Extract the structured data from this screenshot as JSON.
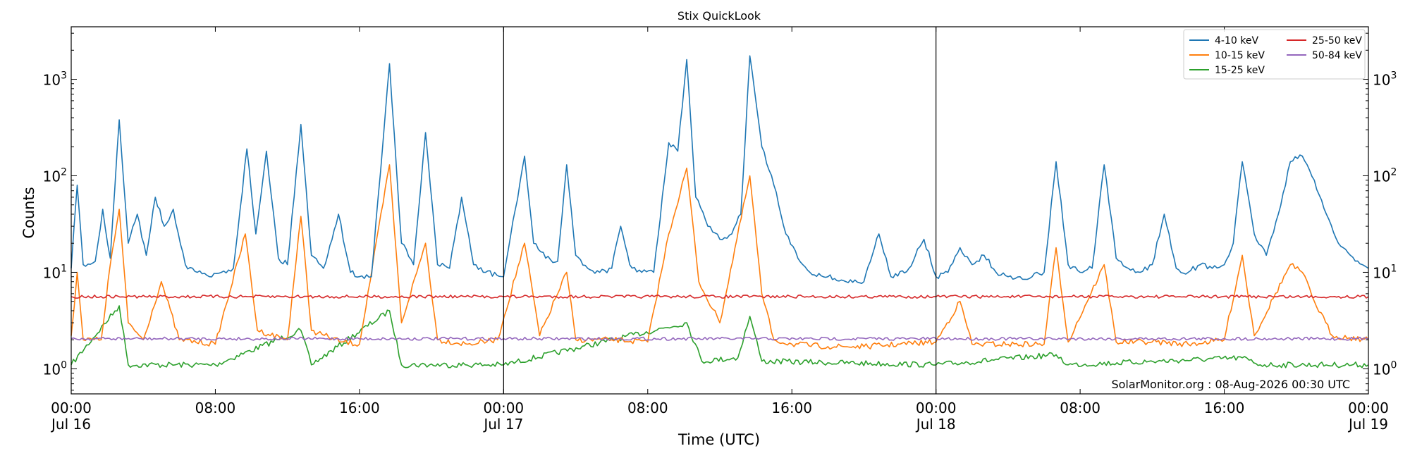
{
  "chart_data": {
    "type": "line",
    "title": "Stix QuickLook",
    "xlabel": "Time (UTC)",
    "ylabel": "Counts",
    "yscale": "log",
    "ylim": [
      0.55,
      3500
    ],
    "xlim": [
      "2026-07-16 00:00",
      "2026-07-19 00:00"
    ],
    "grid": false,
    "legend_position": "top-right",
    "annotation": "SolarMonitor.org : 08-Aug-2026 00:30 UTC",
    "x_ticks": [
      {
        "at": "2026-07-16 00:00",
        "line1": "00:00",
        "line2": "Jul 16"
      },
      {
        "at": "2026-07-16 08:00",
        "line1": "08:00",
        "line2": ""
      },
      {
        "at": "2026-07-16 16:00",
        "line1": "16:00",
        "line2": ""
      },
      {
        "at": "2026-07-17 00:00",
        "line1": "00:00",
        "line2": "Jul 17"
      },
      {
        "at": "2026-07-17 08:00",
        "line1": "08:00",
        "line2": ""
      },
      {
        "at": "2026-07-17 16:00",
        "line1": "16:00",
        "line2": ""
      },
      {
        "at": "2026-07-18 00:00",
        "line1": "00:00",
        "line2": "Jul 18"
      },
      {
        "at": "2026-07-18 08:00",
        "line1": "08:00",
        "line2": ""
      },
      {
        "at": "2026-07-18 16:00",
        "line1": "16:00",
        "line2": ""
      },
      {
        "at": "2026-07-19 00:00",
        "line1": "00:00",
        "line2": "Jul 19"
      }
    ],
    "y_ticks": [
      1,
      10,
      100,
      1000
    ],
    "day_markers": [
      "2026-07-17 00:00",
      "2026-07-18 00:00"
    ],
    "series": [
      {
        "name": "4-10 keV",
        "color": "#1f77b4",
        "points": [
          [
            "2026-07-16 00:00",
            11
          ],
          [
            "2026-07-16 00:20",
            80
          ],
          [
            "2026-07-16 00:40",
            12
          ],
          [
            "2026-07-16 01:20",
            13
          ],
          [
            "2026-07-16 01:45",
            45
          ],
          [
            "2026-07-16 02:10",
            14
          ],
          [
            "2026-07-16 02:40",
            380
          ],
          [
            "2026-07-16 03:10",
            20
          ],
          [
            "2026-07-16 03:40",
            40
          ],
          [
            "2026-07-16 04:10",
            15
          ],
          [
            "2026-07-16 04:40",
            60
          ],
          [
            "2026-07-16 05:10",
            30
          ],
          [
            "2026-07-16 05:40",
            45
          ],
          [
            "2026-07-16 06:20",
            12
          ],
          [
            "2026-07-16 07:00",
            10
          ],
          [
            "2026-07-16 07:40",
            9
          ],
          [
            "2026-07-16 08:20",
            10
          ],
          [
            "2026-07-16 09:00",
            11
          ],
          [
            "2026-07-16 09:45",
            190
          ],
          [
            "2026-07-16 10:15",
            25
          ],
          [
            "2026-07-16 10:50",
            180
          ],
          [
            "2026-07-16 11:30",
            14
          ],
          [
            "2026-07-16 12:00",
            12
          ],
          [
            "2026-07-16 12:45",
            340
          ],
          [
            "2026-07-16 13:20",
            15
          ],
          [
            "2026-07-16 14:00",
            11
          ],
          [
            "2026-07-16 14:50",
            40
          ],
          [
            "2026-07-16 15:30",
            10
          ],
          [
            "2026-07-16 16:00",
            9
          ],
          [
            "2026-07-16 16:40",
            9
          ],
          [
            "2026-07-16 17:40",
            1450
          ],
          [
            "2026-07-16 18:20",
            20
          ],
          [
            "2026-07-16 19:00",
            12
          ],
          [
            "2026-07-16 19:40",
            280
          ],
          [
            "2026-07-16 20:20",
            12
          ],
          [
            "2026-07-16 21:00",
            11
          ],
          [
            "2026-07-16 21:40",
            60
          ],
          [
            "2026-07-16 22:20",
            12
          ],
          [
            "2026-07-16 23:00",
            10
          ],
          [
            "2026-07-17 00:00",
            9
          ],
          [
            "2026-07-17 01:10",
            160
          ],
          [
            "2026-07-17 01:40",
            20
          ],
          [
            "2026-07-17 02:20",
            14
          ],
          [
            "2026-07-17 03:00",
            13
          ],
          [
            "2026-07-17 03:30",
            130
          ],
          [
            "2026-07-17 04:00",
            15
          ],
          [
            "2026-07-17 04:40",
            11
          ],
          [
            "2026-07-17 05:20",
            10
          ],
          [
            "2026-07-17 06:00",
            11
          ],
          [
            "2026-07-17 06:30",
            30
          ],
          [
            "2026-07-17 07:00",
            12
          ],
          [
            "2026-07-17 07:40",
            10
          ],
          [
            "2026-07-17 08:20",
            10
          ],
          [
            "2026-07-17 09:10",
            220
          ],
          [
            "2026-07-17 09:40",
            180
          ],
          [
            "2026-07-17 10:10",
            1600
          ],
          [
            "2026-07-17 10:40",
            60
          ],
          [
            "2026-07-17 11:20",
            30
          ],
          [
            "2026-07-17 12:00",
            22
          ],
          [
            "2026-07-17 12:40",
            25
          ],
          [
            "2026-07-17 13:10",
            40
          ],
          [
            "2026-07-17 13:40",
            1750
          ],
          [
            "2026-07-17 14:20",
            200
          ],
          [
            "2026-07-17 15:00",
            80
          ],
          [
            "2026-07-17 15:40",
            25
          ],
          [
            "2026-07-17 16:20",
            14
          ],
          [
            "2026-07-17 17:00",
            10
          ],
          [
            "2026-07-17 18:00",
            9
          ],
          [
            "2026-07-17 19:00",
            8
          ],
          [
            "2026-07-17 20:00",
            8
          ],
          [
            "2026-07-17 20:50",
            25
          ],
          [
            "2026-07-17 21:30",
            9
          ],
          [
            "2026-07-17 22:30",
            11
          ],
          [
            "2026-07-17 23:20",
            22
          ],
          [
            "2026-07-18 00:00",
            9
          ],
          [
            "2026-07-18 00:40",
            10
          ],
          [
            "2026-07-18 01:20",
            18
          ],
          [
            "2026-07-18 02:00",
            12
          ],
          [
            "2026-07-18 02:40",
            15
          ],
          [
            "2026-07-18 03:20",
            10
          ],
          [
            "2026-07-18 04:00",
            9
          ],
          [
            "2026-07-18 04:40",
            9
          ],
          [
            "2026-07-18 05:20",
            9
          ],
          [
            "2026-07-18 06:00",
            10
          ],
          [
            "2026-07-18 06:40",
            140
          ],
          [
            "2026-07-18 07:20",
            12
          ],
          [
            "2026-07-18 08:00",
            10
          ],
          [
            "2026-07-18 08:40",
            11
          ],
          [
            "2026-07-18 09:20",
            130
          ],
          [
            "2026-07-18 10:00",
            14
          ],
          [
            "2026-07-18 10:40",
            11
          ],
          [
            "2026-07-18 11:20",
            10
          ],
          [
            "2026-07-18 12:00",
            12
          ],
          [
            "2026-07-18 12:40",
            40
          ],
          [
            "2026-07-18 13:20",
            11
          ],
          [
            "2026-07-18 14:00",
            10
          ],
          [
            "2026-07-18 14:40",
            12
          ],
          [
            "2026-07-18 15:20",
            11
          ],
          [
            "2026-07-18 16:00",
            12
          ],
          [
            "2026-07-18 16:30",
            20
          ],
          [
            "2026-07-18 17:00",
            140
          ],
          [
            "2026-07-18 17:40",
            25
          ],
          [
            "2026-07-18 18:20",
            15
          ],
          [
            "2026-07-18 19:00",
            40
          ],
          [
            "2026-07-18 19:40",
            140
          ],
          [
            "2026-07-18 20:20",
            160
          ],
          [
            "2026-07-18 21:00",
            90
          ],
          [
            "2026-07-18 21:40",
            40
          ],
          [
            "2026-07-18 22:20",
            20
          ],
          [
            "2026-07-18 23:00",
            15
          ],
          [
            "2026-07-18 23:40",
            12
          ],
          [
            "2026-07-19 00:00",
            11
          ]
        ]
      },
      {
        "name": "10-15 keV",
        "color": "#ff7f0e",
        "points": [
          [
            "2026-07-16 00:00",
            2.2
          ],
          [
            "2026-07-16 00:20",
            10
          ],
          [
            "2026-07-16 00:40",
            2.0
          ],
          [
            "2026-07-16 01:40",
            2.0
          ],
          [
            "2026-07-16 02:10",
            12
          ],
          [
            "2026-07-16 02:40",
            45
          ],
          [
            "2026-07-16 03:10",
            3.0
          ],
          [
            "2026-07-16 04:00",
            2.0
          ],
          [
            "2026-07-16 05:00",
            8
          ],
          [
            "2026-07-16 06:00",
            2.0
          ],
          [
            "2026-07-16 08:00",
            1.8
          ],
          [
            "2026-07-16 09:40",
            25
          ],
          [
            "2026-07-16 10:20",
            2.5
          ],
          [
            "2026-07-16 12:00",
            2.0
          ],
          [
            "2026-07-16 12:45",
            38
          ],
          [
            "2026-07-16 13:20",
            2.5
          ],
          [
            "2026-07-16 15:00",
            1.9
          ],
          [
            "2026-07-16 16:00",
            1.8
          ],
          [
            "2026-07-16 17:40",
            130
          ],
          [
            "2026-07-16 18:20",
            3.0
          ],
          [
            "2026-07-16 19:40",
            20
          ],
          [
            "2026-07-16 20:20",
            2.0
          ],
          [
            "2026-07-16 22:00",
            1.8
          ],
          [
            "2026-07-16 23:40",
            2.0
          ],
          [
            "2026-07-17 01:10",
            20
          ],
          [
            "2026-07-17 02:00",
            2.2
          ],
          [
            "2026-07-17 03:30",
            10
          ],
          [
            "2026-07-17 04:00",
            2.0
          ],
          [
            "2026-07-17 06:00",
            2.0
          ],
          [
            "2026-07-17 08:00",
            1.9
          ],
          [
            "2026-07-17 09:10",
            25
          ],
          [
            "2026-07-17 10:10",
            120
          ],
          [
            "2026-07-17 10:50",
            8
          ],
          [
            "2026-07-17 12:00",
            3.0
          ],
          [
            "2026-07-17 13:40",
            100
          ],
          [
            "2026-07-17 14:20",
            6
          ],
          [
            "2026-07-17 15:00",
            2.0
          ],
          [
            "2026-07-17 16:00",
            1.8
          ],
          [
            "2026-07-17 18:00",
            1.7
          ],
          [
            "2026-07-17 20:00",
            1.7
          ],
          [
            "2026-07-17 22:00",
            1.8
          ],
          [
            "2026-07-18 00:00",
            1.9
          ],
          [
            "2026-07-18 01:20",
            5
          ],
          [
            "2026-07-18 02:00",
            1.8
          ],
          [
            "2026-07-18 04:00",
            1.8
          ],
          [
            "2026-07-18 06:00",
            1.8
          ],
          [
            "2026-07-18 06:40",
            18
          ],
          [
            "2026-07-18 07:20",
            1.9
          ],
          [
            "2026-07-18 09:20",
            12
          ],
          [
            "2026-07-18 10:00",
            1.9
          ],
          [
            "2026-07-18 12:00",
            1.9
          ],
          [
            "2026-07-18 14:00",
            1.8
          ],
          [
            "2026-07-18 16:00",
            2.0
          ],
          [
            "2026-07-18 17:00",
            15
          ],
          [
            "2026-07-18 17:40",
            2.2
          ],
          [
            "2026-07-18 19:40",
            12
          ],
          [
            "2026-07-18 20:20",
            10
          ],
          [
            "2026-07-18 21:00",
            5
          ],
          [
            "2026-07-18 22:00",
            2.2
          ],
          [
            "2026-07-19 00:00",
            2.0
          ]
        ]
      },
      {
        "name": "15-25 keV",
        "color": "#2ca02c",
        "points": [
          [
            "2026-07-16 00:00",
            1.1
          ],
          [
            "2026-07-16 02:40",
            4.5
          ],
          [
            "2026-07-16 03:10",
            1.1
          ],
          [
            "2026-07-16 08:00",
            1.1
          ],
          [
            "2026-07-16 12:45",
            2.5
          ],
          [
            "2026-07-16 13:20",
            1.1
          ],
          [
            "2026-07-16 17:40",
            4.0
          ],
          [
            "2026-07-16 18:20",
            1.1
          ],
          [
            "2026-07-17 00:00",
            1.1
          ],
          [
            "2026-07-17 10:10",
            3.0
          ],
          [
            "2026-07-17 11:00",
            1.2
          ],
          [
            "2026-07-17 13:00",
            1.3
          ],
          [
            "2026-07-17 13:40",
            3.5
          ],
          [
            "2026-07-17 14:20",
            1.2
          ],
          [
            "2026-07-18 00:00",
            1.1
          ],
          [
            "2026-07-18 06:40",
            1.4
          ],
          [
            "2026-07-18 07:20",
            1.1
          ],
          [
            "2026-07-18 17:00",
            1.3
          ],
          [
            "2026-07-18 18:00",
            1.1
          ],
          [
            "2026-07-19 00:00",
            1.1
          ]
        ]
      },
      {
        "name": "25-50 keV",
        "color": "#d62728",
        "points": [
          [
            "2026-07-16 00:00",
            5.6
          ],
          [
            "2026-07-16 12:00",
            5.6
          ],
          [
            "2026-07-17 00:00",
            5.6
          ],
          [
            "2026-07-17 12:00",
            5.6
          ],
          [
            "2026-07-18 00:00",
            5.6
          ],
          [
            "2026-07-18 12:00",
            5.6
          ],
          [
            "2026-07-19 00:00",
            5.6
          ]
        ]
      },
      {
        "name": "50-84 keV",
        "color": "#9467bd",
        "points": [
          [
            "2026-07-16 00:00",
            2.05
          ],
          [
            "2026-07-16 12:00",
            2.05
          ],
          [
            "2026-07-17 00:00",
            2.05
          ],
          [
            "2026-07-17 12:00",
            2.05
          ],
          [
            "2026-07-18 00:00",
            2.05
          ],
          [
            "2026-07-18 12:00",
            2.05
          ],
          [
            "2026-07-19 00:00",
            2.05
          ]
        ]
      }
    ]
  }
}
